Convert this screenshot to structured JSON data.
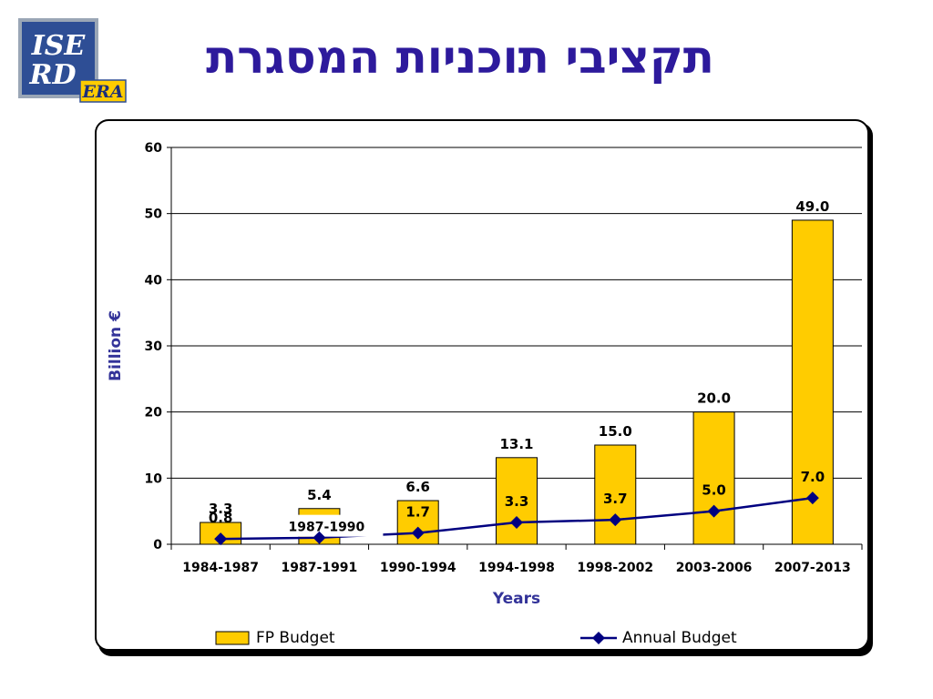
{
  "slide": {
    "title": "תקציבי תוכניות המסגרת"
  },
  "logo": {
    "line1": "ISE",
    "line2": "RD",
    "tag": "ERA"
  },
  "colors": {
    "bar": "#ffcc00",
    "line": "#000080",
    "title": "#2d1a9c",
    "axis_label": "#333399"
  },
  "chart_data": {
    "type": "bar",
    "categories": [
      "1984-1987",
      "1987-1991",
      "1990-1994",
      "1994-1998",
      "1998-2002",
      "2003-2006",
      "2007-2013"
    ],
    "series": [
      {
        "name": "FP Budget",
        "type": "bar",
        "values": [
          3.3,
          5.4,
          6.6,
          13.1,
          15.0,
          20.0,
          49.0
        ],
        "labels": [
          "3.3",
          "5.4",
          "6.6",
          "13.1",
          "15.0",
          "20.0",
          "49.0"
        ]
      },
      {
        "name": "Annual Budget",
        "type": "line",
        "values": [
          0.8,
          1.0,
          1.7,
          3.3,
          3.7,
          5.0,
          7.0
        ],
        "labels": [
          "0.8",
          "",
          "1.7",
          "3.3",
          "3.7",
          "5.0",
          "7.0"
        ]
      }
    ],
    "ylabel": "Billion €",
    "xlabel": "Years",
    "ylim": [
      0,
      60
    ],
    "yticks": [
      0,
      10,
      20,
      30,
      40,
      50,
      60
    ],
    "grid": true,
    "legend": "bottom",
    "annotation": "1987-1990"
  }
}
